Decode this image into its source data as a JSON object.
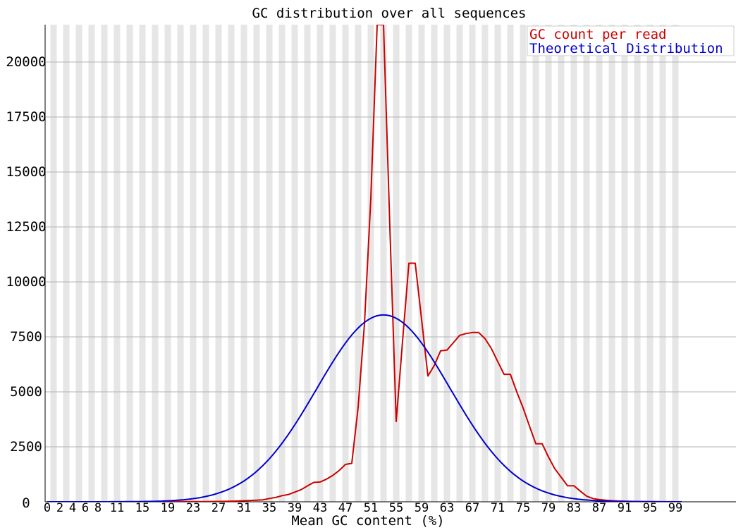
{
  "chart_data": {
    "type": "line",
    "title": "GC distribution over all sequences",
    "xlabel": "Mean GC content (%)",
    "ylabel": "",
    "xlim": [
      0,
      100
    ],
    "ylim": [
      0,
      21700
    ],
    "y_ticks": [
      0,
      2500,
      5000,
      7500,
      10000,
      12500,
      15000,
      17500,
      20000
    ],
    "x_tick_labels": [
      "0",
      "2",
      "4",
      "6",
      "8",
      "11",
      "15",
      "19",
      "23",
      "27",
      "31",
      "35",
      "39",
      "43",
      "47",
      "51",
      "55",
      "59",
      "63",
      "67",
      "71",
      "75",
      "79",
      "83",
      "87",
      "91",
      "95",
      "99"
    ],
    "grid": "horizontal gridlines with alternating grey vertical bands",
    "legend_position": "top-right",
    "series": [
      {
        "name": "GC count per read",
        "color": "#cc0000",
        "points": [
          [
            0,
            0
          ],
          [
            10,
            0
          ],
          [
            20,
            5
          ],
          [
            25,
            10
          ],
          [
            28,
            20
          ],
          [
            30,
            35
          ],
          [
            32,
            60
          ],
          [
            34,
            90
          ],
          [
            35,
            150
          ],
          [
            36,
            200
          ],
          [
            37,
            280
          ],
          [
            38,
            330
          ],
          [
            39,
            440
          ],
          [
            40,
            550
          ],
          [
            41,
            720
          ],
          [
            42,
            880
          ],
          [
            43,
            900
          ],
          [
            44,
            1030
          ],
          [
            45,
            1200
          ],
          [
            46,
            1420
          ],
          [
            47,
            1700
          ],
          [
            48,
            1750
          ],
          [
            49,
            4300
          ],
          [
            50,
            8100
          ],
          [
            51,
            13800
          ],
          [
            52,
            21700
          ],
          [
            53,
            21700
          ],
          [
            54,
            12500
          ],
          [
            55,
            3650
          ],
          [
            56,
            7300
          ],
          [
            57,
            10850
          ],
          [
            58,
            10850
          ],
          [
            59,
            8300
          ],
          [
            60,
            5720
          ],
          [
            61,
            6200
          ],
          [
            62,
            6870
          ],
          [
            63,
            6900
          ],
          [
            64,
            7230
          ],
          [
            65,
            7570
          ],
          [
            66,
            7650
          ],
          [
            67,
            7700
          ],
          [
            68,
            7700
          ],
          [
            69,
            7420
          ],
          [
            70,
            6970
          ],
          [
            71,
            6380
          ],
          [
            72,
            5800
          ],
          [
            73,
            5800
          ],
          [
            74,
            5000
          ],
          [
            75,
            4270
          ],
          [
            76,
            3450
          ],
          [
            77,
            2640
          ],
          [
            78,
            2640
          ],
          [
            79,
            2040
          ],
          [
            80,
            1500
          ],
          [
            81,
            1120
          ],
          [
            82,
            730
          ],
          [
            83,
            730
          ],
          [
            84,
            490
          ],
          [
            85,
            260
          ],
          [
            86,
            150
          ],
          [
            87,
            100
          ],
          [
            88,
            70
          ],
          [
            89,
            50
          ],
          [
            90,
            35
          ],
          [
            92,
            20
          ],
          [
            95,
            10
          ],
          [
            100,
            0
          ]
        ]
      },
      {
        "name": "Theoretical Distribution",
        "color": "#0000cc",
        "mean": 53,
        "sd": 10.5,
        "peak": 8500,
        "x_range": [
          0,
          100
        ]
      }
    ]
  }
}
